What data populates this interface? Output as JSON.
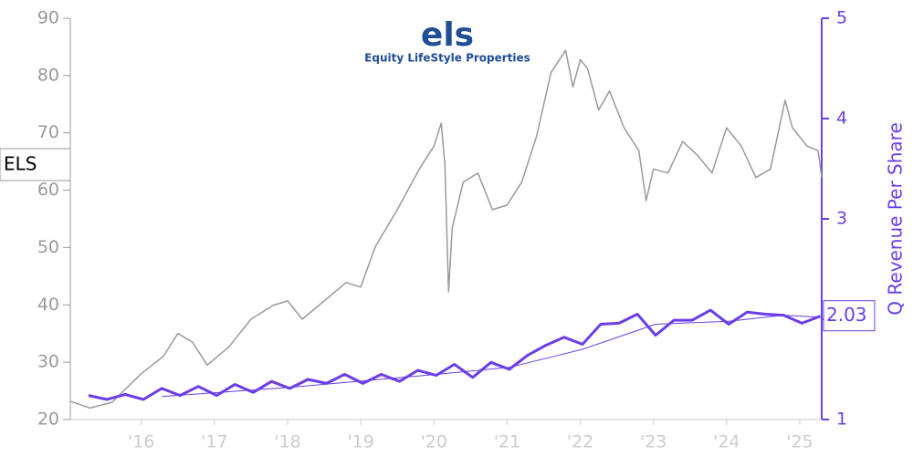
{
  "chart_data": {
    "type": "line",
    "annotations": [
      "els",
      "Equity LifeStyle Properties"
    ],
    "y2label": "Q Revenue Per Share",
    "xlim": [
      2015.03,
      2025.3
    ],
    "xticks": [
      {
        "value": 2016,
        "label": "'16"
      },
      {
        "value": 2017,
        "label": "'17"
      },
      {
        "value": 2018,
        "label": "'18"
      },
      {
        "value": 2019,
        "label": "'19"
      },
      {
        "value": 2020,
        "label": "'20"
      },
      {
        "value": 2021,
        "label": "'21"
      },
      {
        "value": 2022,
        "label": "'22"
      },
      {
        "value": 2023,
        "label": "'23"
      },
      {
        "value": 2024,
        "label": "'24"
      },
      {
        "value": 2025,
        "label": "'25"
      }
    ],
    "ylim": [
      20,
      90
    ],
    "yticks": [
      20,
      30,
      40,
      50,
      60,
      70,
      80,
      90
    ],
    "y2lim": [
      1,
      5
    ],
    "y2ticks": [
      1,
      2,
      3,
      4,
      5
    ],
    "grid": false,
    "series": [
      {
        "name": "ELS",
        "color": "#999999",
        "axis": "y",
        "x": [
          2015.03,
          2015.3,
          2015.6,
          2015.8,
          2016.0,
          2016.3,
          2016.5,
          2016.7,
          2016.9,
          2017.2,
          2017.5,
          2017.8,
          2018.0,
          2018.2,
          2018.5,
          2018.8,
          2019.0,
          2019.2,
          2019.5,
          2019.8,
          2020.0,
          2020.1,
          2020.15,
          2020.2,
          2020.25,
          2020.4,
          2020.6,
          2020.8,
          2021.0,
          2021.2,
          2021.4,
          2021.6,
          2021.8,
          2021.9,
          2022.0,
          2022.1,
          2022.25,
          2022.4,
          2022.6,
          2022.8,
          2022.9,
          2023.0,
          2023.2,
          2023.4,
          2023.6,
          2023.8,
          2024.0,
          2024.2,
          2024.4,
          2024.6,
          2024.8,
          2024.9,
          2025.1,
          2025.25,
          2025.3
        ],
        "values": [
          23.2,
          22,
          23,
          25.5,
          28,
          31,
          35,
          33.5,
          29.5,
          32.7,
          37.5,
          39.9,
          40.7,
          37.5,
          40.7,
          43.9,
          43.1,
          50.2,
          56.6,
          63.7,
          67.7,
          71.7,
          64.5,
          42.3,
          53.4,
          61.4,
          63,
          56.6,
          57.4,
          61.4,
          69.3,
          80.5,
          84.4,
          78,
          82.8,
          81.2,
          74,
          77.3,
          70.9,
          66.9,
          58.2,
          63.7,
          63,
          68.5,
          66.1,
          63,
          70.9,
          67.7,
          62.2,
          63.7,
          75.7,
          70.9,
          67.7,
          66.9,
          62.2
        ]
      },
      {
        "color": "#6a3de8",
        "axis": "y2",
        "x": [
          2015.28,
          2015.53,
          2015.78,
          2016.03,
          2016.28,
          2016.53,
          2016.78,
          2017.03,
          2017.28,
          2017.53,
          2017.78,
          2018.03,
          2018.28,
          2018.53,
          2018.78,
          2019.03,
          2019.28,
          2019.53,
          2019.78,
          2020.03,
          2020.28,
          2020.53,
          2020.78,
          2021.03,
          2021.28,
          2021.53,
          2021.78,
          2022.03,
          2022.28,
          2022.53,
          2022.78,
          2023.03,
          2023.28,
          2023.53,
          2023.78,
          2024.03,
          2024.28,
          2024.53,
          2024.78,
          2025.03,
          2025.28
        ],
        "values": [
          1.24,
          1.2,
          1.25,
          1.2,
          1.31,
          1.24,
          1.33,
          1.24,
          1.35,
          1.27,
          1.38,
          1.31,
          1.4,
          1.36,
          1.45,
          1.36,
          1.45,
          1.38,
          1.49,
          1.44,
          1.55,
          1.42,
          1.57,
          1.5,
          1.64,
          1.74,
          1.82,
          1.75,
          1.95,
          1.96,
          2.05,
          1.84,
          1.99,
          1.99,
          2.09,
          1.95,
          2.07,
          2.05,
          2.04,
          1.96,
          2.03
        ]
      },
      {
        "color": "#6a3de8",
        "axis": "y2",
        "x": [
          2016.28,
          2018.03,
          2020.03,
          2021.03,
          2022.03,
          2023.03,
          2024.03,
          2024.78,
          2025.28
        ],
        "values": [
          1.23,
          1.32,
          1.45,
          1.52,
          1.7,
          1.95,
          1.98,
          2.04,
          2.02
        ]
      }
    ]
  }
}
